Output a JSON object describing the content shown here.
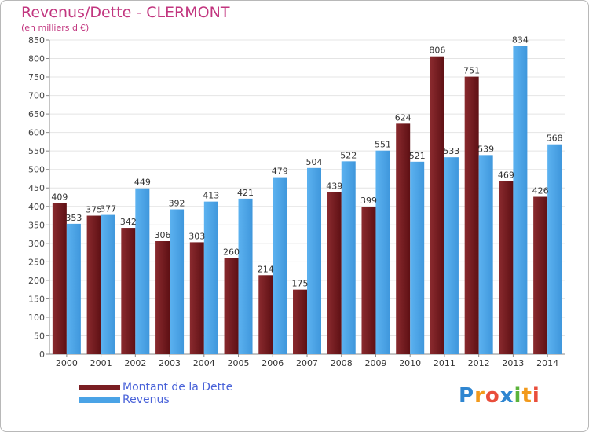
{
  "header": {
    "title": "Revenus/Dette - CLERMONT",
    "subtitle": "(en milliers d'€)"
  },
  "chart_data": {
    "type": "bar",
    "title": "Revenus/Dette - CLERMONT",
    "subtitle": "(en milliers d'€)",
    "categories": [
      "2000",
      "2001",
      "2002",
      "2003",
      "2004",
      "2005",
      "2006",
      "2007",
      "2008",
      "2009",
      "2010",
      "2011",
      "2012",
      "2013",
      "2014"
    ],
    "series": [
      {
        "name": "Montant de la Dette",
        "color": "#7a1e22",
        "values": [
          409,
          375,
          342,
          306,
          303,
          260,
          214,
          175,
          439,
          399,
          624,
          806,
          751,
          469,
          426
        ]
      },
      {
        "name": "Revenus",
        "color": "#4aa3e6",
        "values": [
          353,
          377,
          449,
          392,
          413,
          421,
          479,
          504,
          522,
          551,
          521,
          533,
          539,
          834,
          568
        ]
      }
    ],
    "yticks": [
      0,
      50,
      100,
      150,
      200,
      250,
      300,
      350,
      400,
      450,
      500,
      550,
      600,
      650,
      700,
      750,
      800,
      850
    ],
    "ylim": [
      0,
      850
    ],
    "grid": true,
    "legend_position": "bottom-left"
  },
  "legend": {
    "items": [
      {
        "label": "Montant de la Dette",
        "color": "#7a1e22"
      },
      {
        "label": "Revenus",
        "color": "#4aa3e6"
      }
    ]
  },
  "logo": {
    "text": "Proxiti",
    "letters": [
      {
        "ch": "P",
        "color": "#2f86d1"
      },
      {
        "ch": "r",
        "color": "#f29a1c"
      },
      {
        "ch": "o",
        "color": "#e94e3c"
      },
      {
        "ch": "x",
        "color": "#2f86d1"
      },
      {
        "ch": "i",
        "color": "#5bb33b"
      },
      {
        "ch": "t",
        "color": "#f29a1c"
      },
      {
        "ch": "i",
        "color": "#e94e3c"
      }
    ]
  }
}
